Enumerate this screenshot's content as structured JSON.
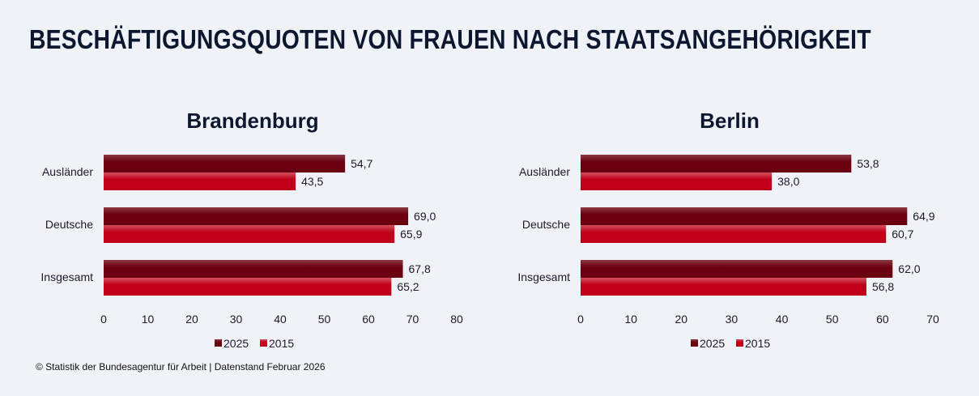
{
  "title": "BESCHÄFTIGUNGSQUOTEN VON FRAUEN NACH STAATSANGEHÖRIGKEIT",
  "footer": "© Statistik der Bundesagentur für Arbeit | Datenstand Februar 2026",
  "colors": {
    "2025": "#6b0010",
    "2015": "#c0001a",
    "background": "#eff3f7"
  },
  "chart_data": [
    {
      "type": "bar",
      "orientation": "horizontal",
      "title": "Brandenburg",
      "categories": [
        "Ausländer",
        "Deutsche",
        "Insgesamt"
      ],
      "series": [
        {
          "name": "2025",
          "values": [
            54.7,
            69.0,
            67.8
          ],
          "labels": [
            "54,7",
            "69,0",
            "67,8"
          ]
        },
        {
          "name": "2015",
          "values": [
            43.5,
            65.9,
            65.2
          ],
          "labels": [
            "43,5",
            "65,9",
            "65,2"
          ]
        }
      ],
      "xlim": [
        0,
        80
      ],
      "xticks": [
        "0",
        "10",
        "20",
        "30",
        "40",
        "50",
        "60",
        "70",
        "80"
      ],
      "grid": false,
      "legend": "bottom"
    },
    {
      "type": "bar",
      "orientation": "horizontal",
      "title": "Berlin",
      "categories": [
        "Ausländer",
        "Deutsche",
        "Insgesamt"
      ],
      "series": [
        {
          "name": "2025",
          "values": [
            53.8,
            64.9,
            62.0
          ],
          "labels": [
            "53,8",
            "64,9",
            "62,0"
          ]
        },
        {
          "name": "2015",
          "values": [
            38.0,
            60.7,
            56.8
          ],
          "labels": [
            "38,0",
            "60,7",
            "56,8"
          ]
        }
      ],
      "xlim": [
        0,
        70
      ],
      "xticks": [
        "0",
        "10",
        "20",
        "30",
        "40",
        "50",
        "60",
        "70"
      ],
      "grid": false,
      "legend": "bottom"
    }
  ]
}
